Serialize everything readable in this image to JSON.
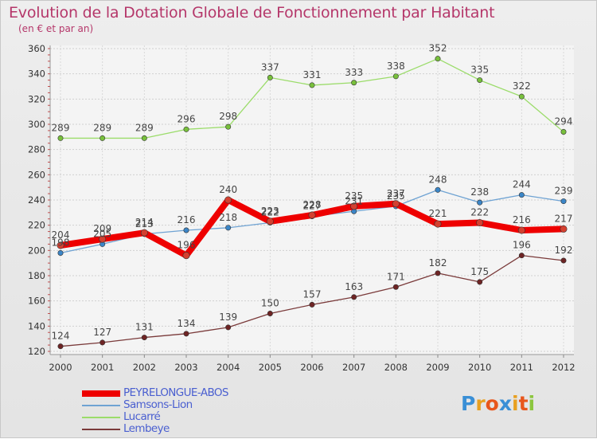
{
  "title": "Evolution de la Dotation Globale de Fonctionnement par Habitant",
  "subtitle": "(en € et par an)",
  "logo": {
    "letters": [
      "P",
      "r",
      "o",
      "x",
      "i",
      "t",
      "i"
    ],
    "colors": [
      "#3a8fd6",
      "#e8a020",
      "#e8561c",
      "#3a8fd6",
      "#e8a020",
      "#e8561c",
      "#8cc63f"
    ]
  },
  "chart_data": {
    "type": "line",
    "x": [
      2000,
      2001,
      2002,
      2003,
      2004,
      2005,
      2006,
      2007,
      2008,
      2009,
      2010,
      2011,
      2012
    ],
    "ylim": [
      120,
      360
    ],
    "yticks": [
      120,
      140,
      160,
      180,
      200,
      220,
      240,
      260,
      280,
      300,
      320,
      340,
      360
    ],
    "xlabel": "",
    "ylabel": "",
    "grid": true,
    "legend_position": "bottom-left",
    "series": [
      {
        "name": "PEYRELONGUE-ABOS",
        "values": [
          204,
          209,
          214,
          196,
          240,
          223,
          228,
          235,
          237,
          221,
          222,
          216,
          217
        ],
        "color": "#ee0000",
        "marker": "#d44030",
        "emphasis": true
      },
      {
        "name": "Samsons-Lion",
        "values": [
          198,
          205,
          213,
          216,
          218,
          222,
          227,
          231,
          235,
          248,
          238,
          244,
          239
        ],
        "color": "#6fa3d3",
        "marker": "#3b86c8"
      },
      {
        "name": "Lucarré",
        "values": [
          289,
          289,
          289,
          296,
          298,
          337,
          331,
          333,
          338,
          352,
          335,
          322,
          294
        ],
        "color": "#9bdc6a",
        "marker": "#78c03c"
      },
      {
        "name": "Lembeye",
        "values": [
          124,
          127,
          131,
          134,
          139,
          150,
          157,
          163,
          171,
          182,
          175,
          196,
          192
        ],
        "color": "#7a3a3a",
        "marker": "#6e2424"
      }
    ]
  }
}
